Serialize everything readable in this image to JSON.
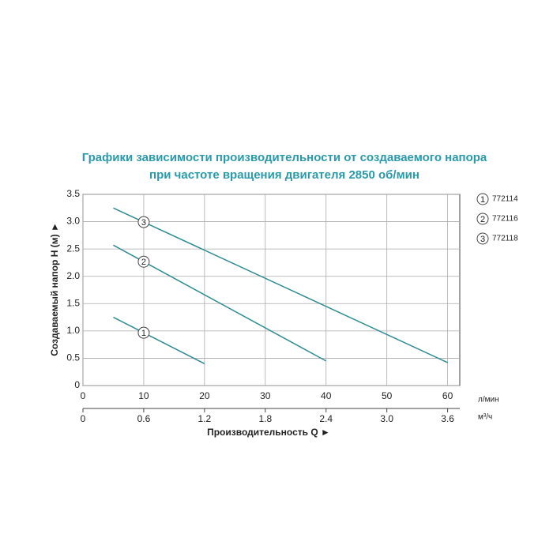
{
  "chart_data": {
    "type": "line",
    "title": [
      "Графики зависимости производительности от создаваемого напора",
      "при частоте вращения двигателя 2850 об/мин"
    ],
    "ylabel": "Создаваемый напор H (м) ►",
    "xlabel": "Производительность Q ►",
    "xunit": "л/мин",
    "x2unit": "м³/ч",
    "xlim": [
      0,
      62
    ],
    "xticks": [
      0,
      10,
      20,
      30,
      40,
      50,
      60
    ],
    "x2lim": [
      0,
      3.72
    ],
    "x2ticks": [
      0,
      0.6,
      1.2,
      1.8,
      2.4,
      {
        "value": 3,
        "label": "3.0"
      },
      3.6
    ],
    "ylim": [
      0,
      3.5
    ],
    "yticks": [
      0,
      0.5,
      {
        "value": 1,
        "label": "1.0"
      },
      1.5,
      {
        "value": 2,
        "label": "2.0"
      },
      2.5,
      {
        "value": 3,
        "label": "3.0"
      },
      3.5
    ],
    "grid": true,
    "series": [
      {
        "name": "772114",
        "label": "1",
        "color": "#2f8d92",
        "x": [
          5,
          20
        ],
        "values": [
          1.25,
          0.4
        ]
      },
      {
        "name": "772116",
        "label": "2",
        "color": "#2f8d92",
        "x": [
          5,
          40
        ],
        "values": [
          2.57,
          0.45
        ]
      },
      {
        "name": "772118",
        "label": "3",
        "color": "#2f8d92",
        "x": [
          5,
          60
        ],
        "values": [
          3.25,
          0.42
        ]
      }
    ]
  }
}
